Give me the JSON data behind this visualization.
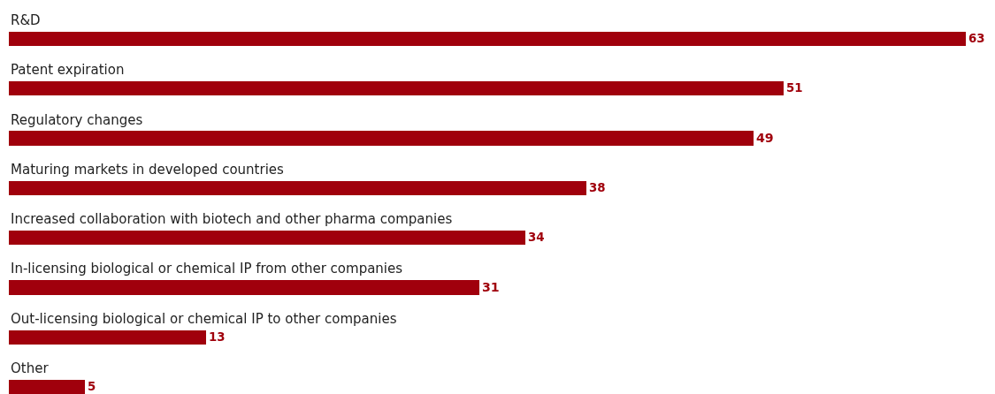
{
  "chart_data": {
    "type": "bar",
    "orientation": "horizontal",
    "data_labels": true,
    "color": "#a0000c",
    "categories": [
      "R&D",
      "Patent expiration",
      "Regulatory changes",
      "Maturing markets in developed countries",
      "Increased collaboration with biotech and other pharma companies",
      "In-licensing biological or chemical IP from other companies",
      "Out-licensing biological or chemical IP to other companies",
      "Other"
    ],
    "values": [
      63,
      51,
      49,
      38,
      34,
      31,
      13,
      5
    ]
  }
}
